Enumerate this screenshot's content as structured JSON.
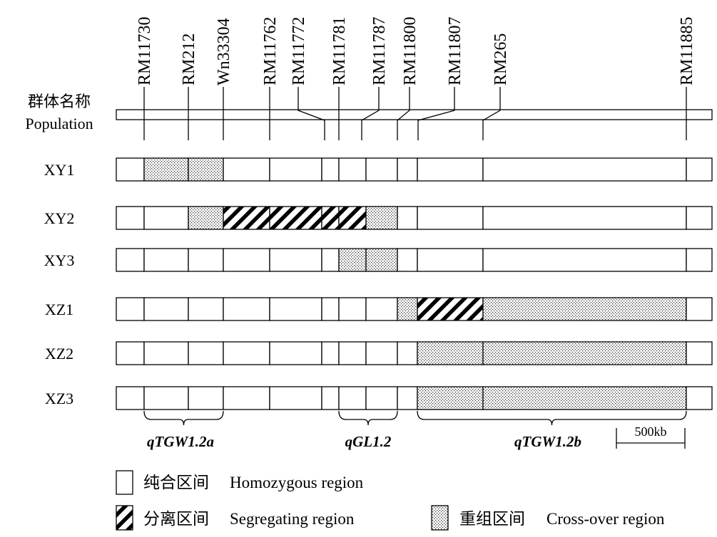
{
  "population_label": {
    "zh": "群体名称",
    "en": "Population"
  },
  "markers": [
    {
      "name": "RM11730",
      "pos": 0.0
    },
    {
      "name": "RM212",
      "pos": 1.0
    },
    {
      "name": "Wn33304",
      "pos": 2.0
    },
    {
      "name": "RM11762",
      "pos": 3.0
    },
    {
      "name": "RM11772",
      "pos": 4.0
    },
    {
      "name": "RM11781",
      "pos": 5.0
    },
    {
      "name": "RM11787",
      "pos": 6.0
    },
    {
      "name": "RM11800",
      "pos": 7.0
    },
    {
      "name": "RM11807",
      "pos": 8.0
    },
    {
      "name": "RM265",
      "pos": 9.0
    },
    {
      "name": "RM11885",
      "pos": 10.0
    }
  ],
  "rows": [
    {
      "label": "XY1",
      "segments": [
        {
          "type": "homo"
        },
        {
          "type": "cross"
        },
        {
          "type": "cross"
        },
        {
          "type": "homo"
        },
        {
          "type": "homo"
        },
        {
          "type": "homo"
        },
        {
          "type": "homo"
        },
        {
          "type": "homo"
        },
        {
          "type": "homo"
        },
        {
          "type": "homo"
        },
        {
          "type": "homo"
        },
        {
          "type": "homo"
        }
      ]
    },
    {
      "label": "XY2",
      "segments": [
        {
          "type": "homo"
        },
        {
          "type": "homo"
        },
        {
          "type": "cross"
        },
        {
          "type": "seg"
        },
        {
          "type": "seg"
        },
        {
          "type": "seg"
        },
        {
          "type": "seg"
        },
        {
          "type": "cross"
        },
        {
          "type": "homo"
        },
        {
          "type": "homo"
        },
        {
          "type": "homo"
        },
        {
          "type": "homo"
        }
      ]
    },
    {
      "label": "XY3",
      "segments": [
        {
          "type": "homo"
        },
        {
          "type": "homo"
        },
        {
          "type": "homo"
        },
        {
          "type": "homo"
        },
        {
          "type": "homo"
        },
        {
          "type": "homo"
        },
        {
          "type": "cross"
        },
        {
          "type": "cross"
        },
        {
          "type": "homo"
        },
        {
          "type": "homo"
        },
        {
          "type": "homo"
        },
        {
          "type": "homo"
        }
      ]
    },
    {
      "label": "XZ1",
      "segments": [
        {
          "type": "homo"
        },
        {
          "type": "homo"
        },
        {
          "type": "homo"
        },
        {
          "type": "homo"
        },
        {
          "type": "homo"
        },
        {
          "type": "homo"
        },
        {
          "type": "homo"
        },
        {
          "type": "homo"
        },
        {
          "type": "cross"
        },
        {
          "type": "seg"
        },
        {
          "type": "cross"
        },
        {
          "type": "homo"
        }
      ]
    },
    {
      "label": "XZ2",
      "segments": [
        {
          "type": "homo"
        },
        {
          "type": "homo"
        },
        {
          "type": "homo"
        },
        {
          "type": "homo"
        },
        {
          "type": "homo"
        },
        {
          "type": "homo"
        },
        {
          "type": "homo"
        },
        {
          "type": "homo"
        },
        {
          "type": "homo"
        },
        {
          "type": "cross"
        },
        {
          "type": "cross"
        },
        {
          "type": "homo"
        }
      ]
    },
    {
      "label": "XZ3",
      "segments": [
        {
          "type": "homo"
        },
        {
          "type": "homo"
        },
        {
          "type": "homo"
        },
        {
          "type": "homo"
        },
        {
          "type": "homo"
        },
        {
          "type": "homo"
        },
        {
          "type": "homo"
        },
        {
          "type": "homo"
        },
        {
          "type": "homo"
        },
        {
          "type": "cross"
        },
        {
          "type": "cross"
        },
        {
          "type": "homo"
        }
      ]
    }
  ],
  "qtls": [
    {
      "name": "qTGW1.2a",
      "from": 1,
      "to": 3
    },
    {
      "name": "qGL1.2",
      "from": 6,
      "to": 8
    },
    {
      "name": "qTGW1.2b",
      "from": 9,
      "to": 11
    }
  ],
  "scale_label": "500kb",
  "legend": [
    {
      "type": "homo",
      "zh": "纯合区间",
      "en": "Homozygous region"
    },
    {
      "type": "seg",
      "zh": "分离区间",
      "en": "Segregating region"
    },
    {
      "type": "cross",
      "zh": "重组区间",
      "en": "Cross-over region"
    }
  ]
}
